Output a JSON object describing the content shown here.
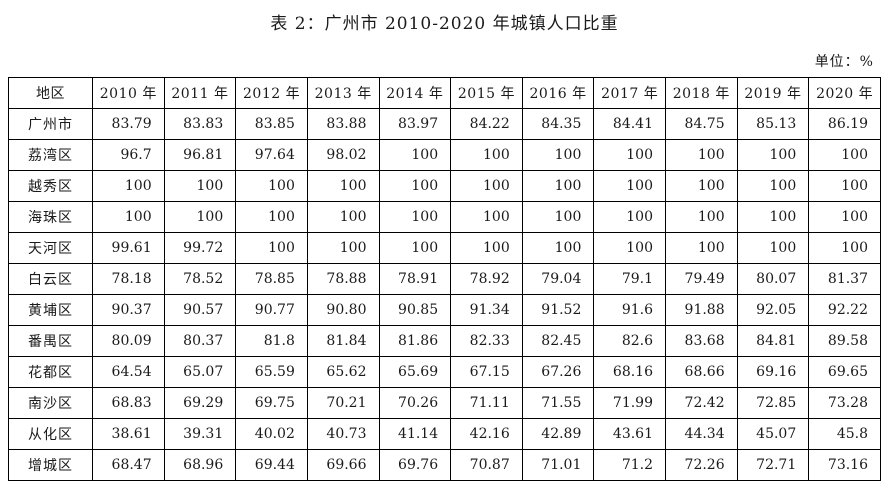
{
  "title": "表 2：广州市 2010-2020 年城镇人口比重",
  "unit_label": "单位：%",
  "colors": {
    "text": "#1a1a1a",
    "border": "#000000",
    "background": "#ffffff"
  },
  "table": {
    "columns": [
      "地区",
      "2010 年",
      "2011 年",
      "2012 年",
      "2013 年",
      "2014 年",
      "2015 年",
      "2016 年",
      "2017 年",
      "2018 年",
      "2019 年",
      "2020 年"
    ],
    "rows": [
      {
        "region": "广州市",
        "values": [
          "83.79",
          "83.83",
          "83.85",
          "83.88",
          "83.97",
          "84.22",
          "84.35",
          "84.41",
          "84.75",
          "85.13",
          "86.19"
        ]
      },
      {
        "region": "荔湾区",
        "values": [
          "96.7",
          "96.81",
          "97.64",
          "98.02",
          "100",
          "100",
          "100",
          "100",
          "100",
          "100",
          "100"
        ]
      },
      {
        "region": "越秀区",
        "values": [
          "100",
          "100",
          "100",
          "100",
          "100",
          "100",
          "100",
          "100",
          "100",
          "100",
          "100"
        ]
      },
      {
        "region": "海珠区",
        "values": [
          "100",
          "100",
          "100",
          "100",
          "100",
          "100",
          "100",
          "100",
          "100",
          "100",
          "100"
        ]
      },
      {
        "region": "天河区",
        "values": [
          "99.61",
          "99.72",
          "100",
          "100",
          "100",
          "100",
          "100",
          "100",
          "100",
          "100",
          "100"
        ]
      },
      {
        "region": "白云区",
        "values": [
          "78.18",
          "78.52",
          "78.85",
          "78.88",
          "78.91",
          "78.92",
          "79.04",
          "79.1",
          "79.49",
          "80.07",
          "81.37"
        ]
      },
      {
        "region": "黄埔区",
        "values": [
          "90.37",
          "90.57",
          "90.77",
          "90.80",
          "90.85",
          "91.34",
          "91.52",
          "91.6",
          "91.88",
          "92.05",
          "92.22"
        ]
      },
      {
        "region": "番禺区",
        "values": [
          "80.09",
          "80.37",
          "81.8",
          "81.84",
          "81.86",
          "82.33",
          "82.45",
          "82.6",
          "83.68",
          "84.81",
          "89.58"
        ]
      },
      {
        "region": "花都区",
        "values": [
          "64.54",
          "65.07",
          "65.59",
          "65.62",
          "65.69",
          "67.15",
          "67.26",
          "68.16",
          "68.66",
          "69.16",
          "69.65"
        ]
      },
      {
        "region": "南沙区",
        "values": [
          "68.83",
          "69.29",
          "69.75",
          "70.21",
          "70.26",
          "71.11",
          "71.55",
          "71.99",
          "72.42",
          "72.85",
          "73.28"
        ]
      },
      {
        "region": "从化区",
        "values": [
          "38.61",
          "39.31",
          "40.02",
          "40.73",
          "41.14",
          "42.16",
          "42.89",
          "43.61",
          "44.34",
          "45.07",
          "45.8"
        ]
      },
      {
        "region": "增城区",
        "values": [
          "68.47",
          "68.96",
          "69.44",
          "69.66",
          "69.76",
          "70.87",
          "71.01",
          "71.2",
          "72.26",
          "72.71",
          "73.16"
        ]
      }
    ]
  }
}
